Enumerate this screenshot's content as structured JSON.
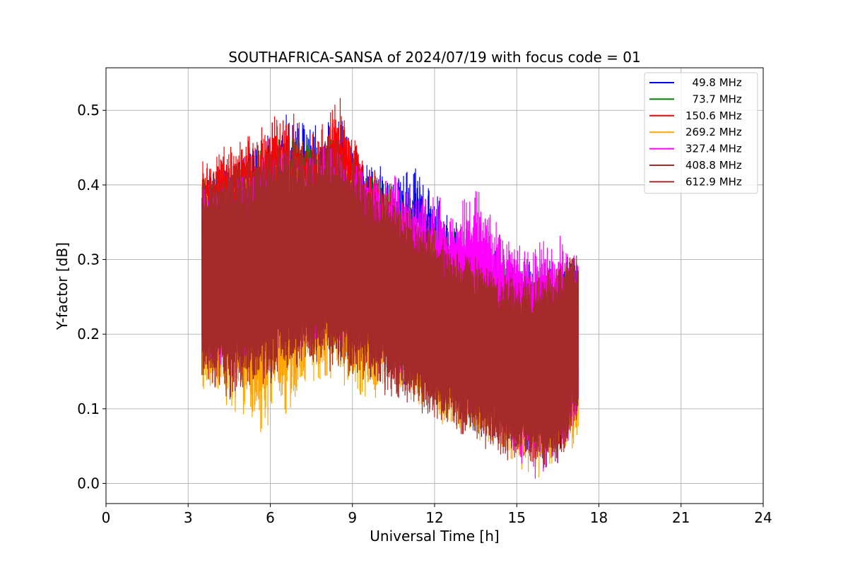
{
  "chart_data": {
    "type": "line",
    "title": "SOUTHAFRICA-SANSA of 2024/07/19 with focus code = 01",
    "xlabel": "Universal Time [h]",
    "ylabel": "Y-factor [dB]",
    "xlim": [
      0,
      24
    ],
    "ylim": [
      -0.027,
      0.557
    ],
    "xticks": [
      0,
      3,
      6,
      9,
      12,
      15,
      18,
      21,
      24
    ],
    "xtick_labels": [
      "0",
      "3",
      "6",
      "9",
      "12",
      "15",
      "18",
      "21",
      "24"
    ],
    "yticks": [
      0.0,
      0.1,
      0.2,
      0.3,
      0.4,
      0.5
    ],
    "ytick_labels": [
      "0.0",
      "0.1",
      "0.2",
      "0.3",
      "0.4",
      "0.5"
    ],
    "grid": true,
    "legend_position": "top-right",
    "x_range_of_data": [
      3.5,
      17.25
    ],
    "series": [
      {
        "name": "  49.8 MHz",
        "color": "#0000ff",
        "x": [
          3.5,
          4.5,
          5.5,
          6.5,
          7.5,
          8.5,
          9.5,
          10.5,
          11.5,
          12.5,
          13.5,
          14.5,
          15.5,
          16.5,
          17.25
        ],
        "y_max": [
          0.43,
          0.44,
          0.47,
          0.5,
          0.49,
          0.5,
          0.44,
          0.42,
          0.43,
          0.37,
          0.33,
          0.31,
          0.3,
          0.31,
          0.31
        ],
        "y_min": [
          0.17,
          0.16,
          0.18,
          0.19,
          0.19,
          0.19,
          0.17,
          0.14,
          0.11,
          0.09,
          0.06,
          0.05,
          0.02,
          0.03,
          0.1
        ]
      },
      {
        "name": "  73.7 MHz",
        "color": "#008000",
        "x": [
          3.5,
          4.5,
          5.5,
          6.5,
          7.5,
          8.5,
          9.5,
          10.5,
          11.5,
          12.5,
          13.5,
          14.5,
          15.5,
          16.5,
          17.25
        ],
        "y_max": [
          0.42,
          0.43,
          0.46,
          0.48,
          0.47,
          0.48,
          0.43,
          0.41,
          0.38,
          0.35,
          0.32,
          0.3,
          0.29,
          0.3,
          0.3
        ],
        "y_min": [
          0.17,
          0.16,
          0.18,
          0.19,
          0.2,
          0.19,
          0.17,
          0.15,
          0.12,
          0.1,
          0.07,
          0.05,
          0.03,
          0.04,
          0.1
        ]
      },
      {
        "name": "150.6 MHz",
        "color": "#ff0000",
        "x": [
          3.5,
          4.5,
          5.5,
          6.5,
          7.5,
          8.5,
          9.5,
          10.5,
          11.5,
          12.5,
          13.5,
          14.5,
          15.5,
          16.5,
          17.25
        ],
        "y_max": [
          0.44,
          0.48,
          0.48,
          0.51,
          0.47,
          0.53,
          0.44,
          0.4,
          0.36,
          0.33,
          0.31,
          0.29,
          0.28,
          0.29,
          0.29
        ],
        "y_min": [
          0.17,
          0.16,
          0.18,
          0.19,
          0.2,
          0.19,
          0.17,
          0.15,
          0.12,
          0.1,
          0.07,
          0.05,
          0.03,
          0.04,
          0.1
        ]
      },
      {
        "name": "269.2 MHz",
        "color": "#ffa500",
        "x": [
          3.5,
          4.5,
          5.5,
          6.5,
          7.5,
          8.5,
          9.5,
          10.5,
          11.5,
          12.5,
          13.5,
          14.5,
          15.5,
          16.5,
          17.25
        ],
        "y_max": [
          0.4,
          0.41,
          0.43,
          0.45,
          0.44,
          0.45,
          0.4,
          0.38,
          0.35,
          0.32,
          0.3,
          0.28,
          0.27,
          0.28,
          0.28
        ],
        "y_min": [
          0.11,
          0.1,
          0.06,
          0.08,
          0.13,
          0.12,
          0.1,
          0.12,
          0.09,
          0.07,
          0.05,
          0.04,
          0.0,
          0.02,
          0.05
        ]
      },
      {
        "name": "327.4 MHz",
        "color": "#ff00ff",
        "x": [
          3.5,
          4.5,
          5.5,
          6.5,
          7.5,
          8.5,
          9.5,
          10.5,
          11.5,
          12.5,
          13.5,
          14.5,
          15.5,
          16.5,
          17.25
        ],
        "y_max": [
          0.4,
          0.42,
          0.44,
          0.46,
          0.45,
          0.46,
          0.43,
          0.42,
          0.4,
          0.38,
          0.4,
          0.34,
          0.33,
          0.34,
          0.32
        ],
        "y_min": [
          0.16,
          0.15,
          0.17,
          0.18,
          0.18,
          0.18,
          0.16,
          0.14,
          0.12,
          0.1,
          0.08,
          0.06,
          0.0,
          0.02,
          0.08
        ]
      },
      {
        "name": "408.8 MHz",
        "color": "#a52a2a",
        "x": [
          3.5,
          4.5,
          5.5,
          6.5,
          7.5,
          8.5,
          9.5,
          10.5,
          11.5,
          12.5,
          13.5,
          14.5,
          15.5,
          16.5,
          17.25
        ],
        "y_max": [
          0.42,
          0.43,
          0.46,
          0.47,
          0.46,
          0.47,
          0.42,
          0.39,
          0.36,
          0.33,
          0.31,
          0.29,
          0.28,
          0.3,
          0.32
        ],
        "y_min": [
          0.14,
          0.11,
          0.12,
          0.14,
          0.15,
          0.15,
          0.13,
          0.11,
          0.09,
          0.07,
          0.05,
          0.03,
          0.02,
          0.02,
          0.08
        ]
      },
      {
        "name": "612.9 MHz",
        "color": "#a52a2a",
        "x": [
          3.5,
          4.5,
          5.5,
          6.5,
          7.5,
          8.5,
          9.5,
          10.5,
          11.5,
          12.5,
          13.5,
          14.5,
          15.5,
          16.5,
          17.25
        ],
        "y_max": [
          0.42,
          0.43,
          0.46,
          0.47,
          0.46,
          0.47,
          0.42,
          0.39,
          0.36,
          0.33,
          0.31,
          0.29,
          0.28,
          0.3,
          0.32
        ],
        "y_min": [
          0.14,
          0.11,
          0.12,
          0.14,
          0.15,
          0.15,
          0.13,
          0.11,
          0.09,
          0.07,
          0.05,
          0.03,
          0.02,
          0.02,
          0.08
        ]
      }
    ]
  }
}
